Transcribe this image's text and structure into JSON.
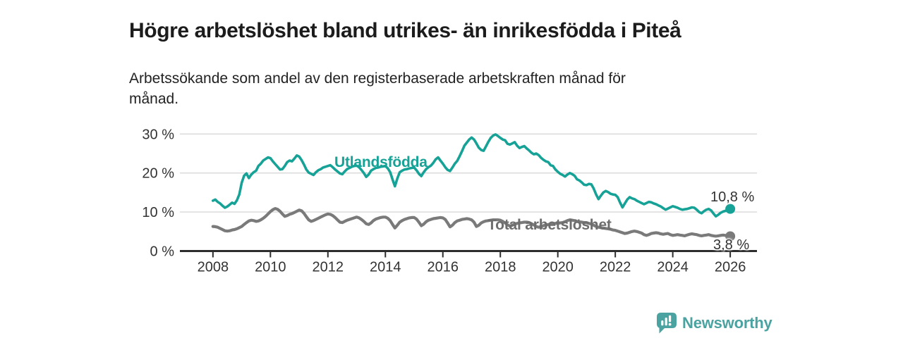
{
  "header": {
    "title": "Högre arbetslöshet bland utrikes- än inrikesfödda i Piteå",
    "subtitle_line1": "Arbetssökande som andel av den registerbaserade arbetskraften månad för",
    "subtitle_line2": "månad."
  },
  "chart_data": {
    "type": "line",
    "title": "Högre arbetslöshet bland utrikes- än inrikesfödda i Piteå",
    "subtitle": "Arbetssökande som andel av den registerbaserade arbetskraften månad för månad.",
    "x_unit": "year, monthly data points",
    "xlim": [
      2006.85,
      2026.93
    ],
    "ylim": [
      0,
      30
    ],
    "grid": "horizontal",
    "legend_position": "inline-on-line",
    "x_ticks": [
      {
        "value": 2008,
        "label": "2008"
      },
      {
        "value": 2010,
        "label": "2010"
      },
      {
        "value": 2012,
        "label": "2012"
      },
      {
        "value": 2014,
        "label": "2014"
      },
      {
        "value": 2016,
        "label": "2016"
      },
      {
        "value": 2018,
        "label": "2018"
      },
      {
        "value": 2020,
        "label": "2020"
      },
      {
        "value": 2022,
        "label": "2022"
      },
      {
        "value": 2024,
        "label": "2024"
      },
      {
        "value": 2026,
        "label": "2026"
      }
    ],
    "y_ticks": [
      {
        "value": 0,
        "label": "0 %"
      },
      {
        "value": 10,
        "label": "10 %"
      },
      {
        "value": 20,
        "label": "20 %"
      },
      {
        "value": 30,
        "label": "30 %"
      }
    ],
    "series": [
      {
        "name": "Utlandsfödda",
        "color": "#16a296",
        "end_label": "10,8 %",
        "end_value": 10.8,
        "start_year": 2008.0,
        "points_per_year": 12,
        "values": [
          12.9,
          13.2,
          12.6,
          12.2,
          11.6,
          11.1,
          11.4,
          11.9,
          12.4,
          12.1,
          13.0,
          14.5,
          17.5,
          19.3,
          19.9,
          18.7,
          19.6,
          20.2,
          20.6,
          21.8,
          22.4,
          23.2,
          23.6,
          24.0,
          23.8,
          23.0,
          22.3,
          21.6,
          20.9,
          21.0,
          21.8,
          22.8,
          23.2,
          23.0,
          23.7,
          24.5,
          24.2,
          23.3,
          22.2,
          20.9,
          20.1,
          19.8,
          19.5,
          20.2,
          20.7,
          21.0,
          21.4,
          21.6,
          21.8,
          22.0,
          21.5,
          20.9,
          20.4,
          19.9,
          19.7,
          20.4,
          21.0,
          21.3,
          21.6,
          21.8,
          21.9,
          21.5,
          20.8,
          20.0,
          19.0,
          19.6,
          20.6,
          21.0,
          21.3,
          21.4,
          21.6,
          21.7,
          21.8,
          21.2,
          20.2,
          18.3,
          16.6,
          18.6,
          20.2,
          20.6,
          20.9,
          21.0,
          21.2,
          21.3,
          21.4,
          20.7,
          19.8,
          19.2,
          20.2,
          21.0,
          21.5,
          21.9,
          22.6,
          23.5,
          24.0,
          23.2,
          22.4,
          21.5,
          20.8,
          20.5,
          21.4,
          22.4,
          23.1,
          24.3,
          25.6,
          27.0,
          27.8,
          28.6,
          29.1,
          28.6,
          27.6,
          26.5,
          25.9,
          25.7,
          26.8,
          28.0,
          29.0,
          29.6,
          29.9,
          29.5,
          29.0,
          28.6,
          28.4,
          27.5,
          27.3,
          27.6,
          27.9,
          27.0,
          26.4,
          26.7,
          26.9,
          26.3,
          25.8,
          25.2,
          24.8,
          25.0,
          24.6,
          23.9,
          23.4,
          23.0,
          22.8,
          22.0,
          21.8,
          20.9,
          20.3,
          19.8,
          19.5,
          19.1,
          19.6,
          20.0,
          19.7,
          19.3,
          18.4,
          18.1,
          17.6,
          17.0,
          16.9,
          17.2,
          17.1,
          16.0,
          14.5,
          13.3,
          14.2,
          15.0,
          15.4,
          15.1,
          14.7,
          14.5,
          14.4,
          13.8,
          12.4,
          11.2,
          12.2,
          13.2,
          13.8,
          13.5,
          13.3,
          12.9,
          12.6,
          12.3,
          12.0,
          12.3,
          12.6,
          12.5,
          12.2,
          12.0,
          11.7,
          11.4,
          11.0,
          10.6,
          10.9,
          11.2,
          11.5,
          11.3,
          11.1,
          10.8,
          10.6,
          10.7,
          10.8,
          11.0,
          11.2,
          11.1,
          10.6,
          10.0,
          9.7,
          10.2,
          10.6,
          10.8,
          10.4,
          9.6,
          8.9,
          9.3,
          9.8,
          10.1,
          10.3,
          10.5,
          10.8
        ]
      },
      {
        "name": "Total arbetslöshet",
        "color": "#7a7a7a",
        "end_label": "3,8 %",
        "end_value": 3.8,
        "start_year": 2008.0,
        "points_per_year": 12,
        "values": [
          6.3,
          6.25,
          6.1,
          5.8,
          5.5,
          5.2,
          5.1,
          5.2,
          5.4,
          5.5,
          5.7,
          6.0,
          6.3,
          6.8,
          7.3,
          7.7,
          7.9,
          7.8,
          7.6,
          7.7,
          8.0,
          8.4,
          8.9,
          9.5,
          10.1,
          10.6,
          10.9,
          10.7,
          10.2,
          9.5,
          8.9,
          9.1,
          9.4,
          9.6,
          9.9,
          10.2,
          10.5,
          10.3,
          9.7,
          8.8,
          8.0,
          7.6,
          7.8,
          8.1,
          8.4,
          8.7,
          9.0,
          9.3,
          9.5,
          9.4,
          9.1,
          8.6,
          8.0,
          7.4,
          7.3,
          7.6,
          7.9,
          8.1,
          8.3,
          8.5,
          8.7,
          8.5,
          8.1,
          7.6,
          7.0,
          6.8,
          7.2,
          7.8,
          8.2,
          8.4,
          8.6,
          8.7,
          8.7,
          8.4,
          7.8,
          6.8,
          5.9,
          6.6,
          7.4,
          7.8,
          8.1,
          8.3,
          8.5,
          8.6,
          8.6,
          8.2,
          7.4,
          6.5,
          6.9,
          7.5,
          7.9,
          8.1,
          8.3,
          8.4,
          8.5,
          8.6,
          8.5,
          8.1,
          7.2,
          6.2,
          6.6,
          7.3,
          7.7,
          7.9,
          8.1,
          8.2,
          8.3,
          8.2,
          8.0,
          7.4,
          6.3,
          6.6,
          7.2,
          7.5,
          7.7,
          7.8,
          7.9,
          8.0,
          8.0,
          8.0,
          7.9,
          7.6,
          7.2,
          6.7,
          6.4,
          6.6,
          6.9,
          7.1,
          7.2,
          7.3,
          7.4,
          7.4,
          7.3,
          7.0,
          6.7,
          6.3,
          6.1,
          6.3,
          6.5,
          6.7,
          6.8,
          6.9,
          7.0,
          7.1,
          7.1,
          7.2,
          7.3,
          7.5,
          7.8,
          8.0,
          7.9,
          7.8,
          7.6,
          7.5,
          7.4,
          7.3,
          7.3,
          7.1,
          6.9,
          6.6,
          6.3,
          6.1,
          6.0,
          5.9,
          5.8,
          5.7,
          5.6,
          5.4,
          5.3,
          5.1,
          4.9,
          4.7,
          4.5,
          4.6,
          4.8,
          5.0,
          5.1,
          5.0,
          4.8,
          4.6,
          4.2,
          4.0,
          4.2,
          4.5,
          4.6,
          4.7,
          4.6,
          4.4,
          4.3,
          4.4,
          4.5,
          4.2,
          4.0,
          4.1,
          4.2,
          4.1,
          4.0,
          3.9,
          4.1,
          4.3,
          4.4,
          4.3,
          4.2,
          4.0,
          3.9,
          4.0,
          4.1,
          4.2,
          4.0,
          3.9,
          3.8,
          3.9,
          4.0,
          4.1,
          4.0,
          3.9,
          3.8
        ]
      }
    ],
    "axis_colors": {
      "grid": "#d8d8d8",
      "axis": "#2d2d2d",
      "tick_text": "#333333"
    }
  },
  "footer": {
    "brand": "Newsworthy",
    "brand_color": "#4aa3a1",
    "logo_icon": "bar-chart-speech-bubble-icon"
  }
}
